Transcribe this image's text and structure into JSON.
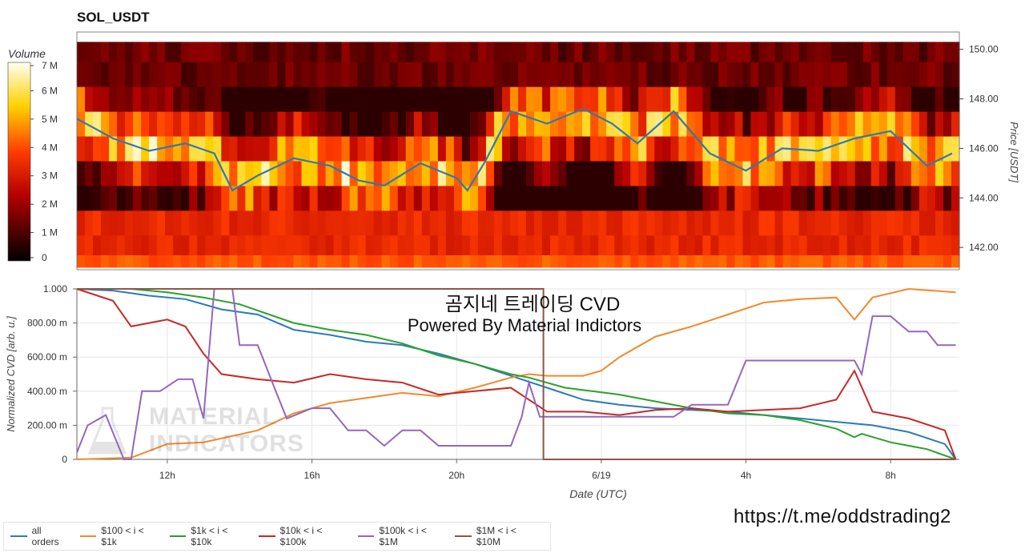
{
  "title": "SOL_USDT",
  "watermark": {
    "line1": "MATERIAL",
    "line2": "INDICATORS"
  },
  "overlay": {
    "line1": "곰지네 트레이딩 CVD",
    "line2": "Powered By Material Indictors"
  },
  "link": "https://t.me/oddstrading2",
  "chart_data": [
    {
      "type": "heatmap",
      "title": "SOL_USDT",
      "colorbar": {
        "label": "Volume",
        "ticks": [
          "0",
          "1 M",
          "2 M",
          "3 M",
          "4 M",
          "5 M",
          "6 M",
          "7 M"
        ],
        "range": [
          0,
          7000000
        ]
      },
      "ylabel": "Price [USDT]",
      "ylim": [
        141.1,
        150.7
      ],
      "y_ticks": [
        "142.00",
        "144.00",
        "146.00",
        "148.00",
        "150.00"
      ],
      "price_bands": [
        141.2,
        141.7,
        142.5,
        143.5,
        144.5,
        145.5,
        146.5,
        147.5,
        148.5,
        149.5,
        150.3
      ],
      "price_series": {
        "color": "#2f78b7",
        "x": [
          9.5,
          10.5,
          11.5,
          12.5,
          13.3,
          13.8,
          14.5,
          15.5,
          16.5,
          17.3,
          18.0,
          19.0,
          20.0,
          20.3,
          20.8,
          21.5,
          22.5,
          23.5,
          24.3,
          25.0,
          26.0,
          27.0,
          28.0,
          29.0,
          30.0,
          31.0,
          32.0,
          33.0,
          33.7
        ],
        "y": [
          147.2,
          146.4,
          145.9,
          146.2,
          145.8,
          144.3,
          144.9,
          145.6,
          145.3,
          144.7,
          144.5,
          145.4,
          144.8,
          144.3,
          145.5,
          147.5,
          147.0,
          147.6,
          147.0,
          146.2,
          147.5,
          145.8,
          145.1,
          146.0,
          145.9,
          146.4,
          146.7,
          145.3,
          145.8
        ]
      }
    },
    {
      "type": "line",
      "xlabel": "Date (UTC)",
      "ylabel": "Normalized CVD [arb. u.]",
      "xlim": [
        9.5,
        33.9
      ],
      "ylim": [
        0,
        1
      ],
      "x_ticks": [
        {
          "x": 12,
          "label": "12h"
        },
        {
          "x": 16,
          "label": "16h"
        },
        {
          "x": 20,
          "label": "20h"
        },
        {
          "x": 24,
          "label": "6/19"
        },
        {
          "x": 28,
          "label": "4h"
        },
        {
          "x": 32,
          "label": "8h"
        }
      ],
      "y_ticks": [
        {
          "v": 0,
          "label": "0"
        },
        {
          "v": 0.2,
          "label": "200.00 m"
        },
        {
          "v": 0.4,
          "label": "400.00 m"
        },
        {
          "v": 0.6,
          "label": "600.00 m"
        },
        {
          "v": 0.8,
          "label": "800.00 m"
        },
        {
          "v": 1,
          "label": "1.000"
        }
      ],
      "grid": true,
      "legend": "bottom",
      "series": [
        {
          "name": "all orders",
          "color": "#2c7bb6",
          "x": [
            9.5,
            10.5,
            11.5,
            12.5,
            13.5,
            14.5,
            15.5,
            16.5,
            17.5,
            18.5,
            19.5,
            20.5,
            21.5,
            22.5,
            23.5,
            24.5,
            25.5,
            26.5,
            27.5,
            28.5,
            29.5,
            30.5,
            31.5,
            32.5,
            33.5,
            33.8
          ],
          "y": [
            1.0,
            0.99,
            0.96,
            0.94,
            0.88,
            0.85,
            0.76,
            0.73,
            0.69,
            0.67,
            0.62,
            0.56,
            0.49,
            0.42,
            0.35,
            0.32,
            0.3,
            0.29,
            0.28,
            0.26,
            0.24,
            0.22,
            0.2,
            0.16,
            0.09,
            0.0
          ]
        },
        {
          "name": "$100 < i < $1k",
          "color": "#f08a2c",
          "x": [
            9.5,
            11.0,
            12.0,
            13.0,
            14.5,
            15.5,
            16.5,
            17.5,
            18.5,
            19.5,
            20.5,
            21.5,
            22.0,
            22.5,
            23.5,
            24.0,
            24.5,
            25.5,
            26.5,
            27.5,
            28.5,
            29.5,
            30.5,
            31.0,
            31.5,
            32.5,
            33.8
          ],
          "y": [
            0.0,
            0.01,
            0.09,
            0.1,
            0.17,
            0.27,
            0.33,
            0.36,
            0.39,
            0.37,
            0.42,
            0.48,
            0.5,
            0.49,
            0.49,
            0.52,
            0.6,
            0.72,
            0.78,
            0.85,
            0.92,
            0.94,
            0.95,
            0.82,
            0.95,
            1.0,
            0.98
          ]
        },
        {
          "name": "$1k < i < $10k",
          "color": "#2ca02c",
          "x": [
            9.5,
            11.0,
            12.0,
            13.0,
            14.0,
            15.5,
            16.5,
            17.5,
            18.5,
            19.5,
            20.5,
            21.5,
            22.0,
            23.0,
            24.5,
            25.5,
            26.5,
            27.5,
            28.5,
            29.5,
            30.5,
            31.0,
            31.2,
            32.0,
            33.0,
            33.8
          ],
          "y": [
            1.0,
            1.0,
            0.98,
            0.95,
            0.91,
            0.8,
            0.76,
            0.73,
            0.68,
            0.61,
            0.56,
            0.5,
            0.48,
            0.42,
            0.38,
            0.34,
            0.3,
            0.27,
            0.26,
            0.23,
            0.18,
            0.13,
            0.15,
            0.1,
            0.06,
            0.0
          ]
        },
        {
          "name": "$10k < i < $100k",
          "color": "#c62828",
          "x": [
            9.5,
            10.5,
            11.0,
            12.0,
            12.5,
            13.0,
            13.5,
            14.5,
            15.5,
            16.5,
            17.5,
            18.5,
            19.5,
            20.5,
            21.5,
            22.5,
            23.5,
            24.5,
            25.5,
            26.5,
            27.5,
            28.5,
            29.5,
            30.5,
            31.0,
            31.5,
            32.5,
            33.5,
            33.8
          ],
          "y": [
            1.0,
            0.93,
            0.78,
            0.82,
            0.78,
            0.62,
            0.5,
            0.47,
            0.45,
            0.5,
            0.47,
            0.45,
            0.38,
            0.4,
            0.42,
            0.28,
            0.28,
            0.26,
            0.29,
            0.3,
            0.28,
            0.29,
            0.3,
            0.35,
            0.52,
            0.28,
            0.24,
            0.17,
            0.0
          ]
        },
        {
          "name": "$100k < i < $1M",
          "color": "#9467bd",
          "x": [
            9.5,
            9.8,
            10.3,
            10.8,
            11.0,
            11.3,
            11.8,
            12.3,
            12.7,
            13.0,
            13.3,
            13.8,
            14.0,
            14.5,
            15.0,
            15.3,
            16.0,
            16.5,
            17.0,
            17.5,
            18.0,
            18.5,
            19.0,
            19.5,
            20.0,
            20.5,
            21.5,
            21.8,
            22.0,
            22.3,
            22.6,
            23.0,
            24.0,
            25.0,
            26.0,
            26.5,
            27.0,
            27.5,
            28.0,
            29.0,
            30.0,
            30.5,
            31.0,
            31.2,
            31.5,
            32.0,
            32.5,
            33.0,
            33.3,
            33.8
          ],
          "y": [
            0.04,
            0.2,
            0.26,
            0.0,
            0.0,
            0.4,
            0.4,
            0.47,
            0.47,
            0.24,
            1.0,
            1.0,
            0.67,
            0.67,
            0.4,
            0.24,
            0.3,
            0.3,
            0.17,
            0.17,
            0.08,
            0.17,
            0.17,
            0.08,
            0.08,
            0.08,
            0.08,
            0.25,
            0.45,
            0.25,
            0.25,
            0.25,
            0.25,
            0.25,
            0.25,
            0.32,
            0.32,
            0.32,
            0.58,
            0.58,
            0.58,
            0.58,
            0.58,
            0.5,
            0.84,
            0.84,
            0.75,
            0.75,
            0.67,
            0.67
          ]
        },
        {
          "name": "$1M < i < $10M",
          "color": "#8c564b",
          "x": [
            9.5,
            22.4,
            22.4,
            22.45,
            22.45,
            33.8
          ],
          "y": [
            1.0,
            1.0,
            0.0,
            0.0,
            0.0,
            0.0
          ]
        }
      ]
    }
  ]
}
